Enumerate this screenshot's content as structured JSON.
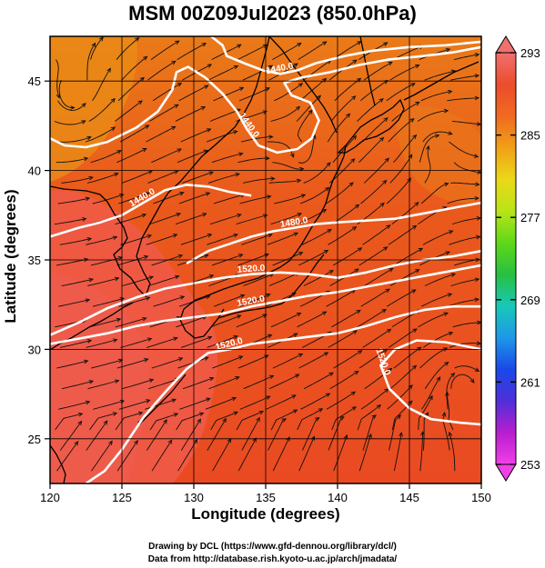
{
  "title": "MSM 00Z09Jul2023 (850.0hPa)",
  "xlabel": "Longitude (degrees)",
  "ylabel": "Latitude  (degrees)",
  "credits": [
    "Drawing by DCL (https://www.gfd-dennou.org/library/dcl/)",
    "Data from http://database.rish.kyoto-u.ac.jp/arch/jmadata/"
  ],
  "colors": {
    "warm_fill": "#ea4a1f",
    "hot_fill": "#ef5b4a",
    "mild_fill": "#ea7a18",
    "contour": "#ffffff",
    "coast": "#000000",
    "grid": "#000000"
  },
  "chart_data": {
    "type": "heatmap",
    "map_type": "weather map with filled temperature, streamlines and height contours",
    "xlim": [
      120,
      150
    ],
    "ylim": [
      22.5,
      47.5
    ],
    "xticks": [
      120,
      125,
      130,
      135,
      140,
      145,
      150
    ],
    "yticks": [
      25,
      30,
      35,
      40,
      45
    ],
    "grid": true,
    "colorbar": {
      "ticks": [
        253,
        261,
        269,
        277,
        285,
        293
      ],
      "range": [
        253,
        293
      ],
      "colors_low_to_high": [
        "#f040e8",
        "#b81ed0",
        "#4f2fd8",
        "#1a48e8",
        "#1e98e8",
        "#18c8b8",
        "#28c040",
        "#5ed818",
        "#b8e418",
        "#ecd818",
        "#f0a018",
        "#f06a20",
        "#ec4c2c",
        "#f07070"
      ]
    },
    "contours": [
      {
        "label": "1440.0",
        "points": [
          [
            120,
            41.8
          ],
          [
            121,
            41.4
          ],
          [
            122.5,
            41.3
          ],
          [
            124,
            41.6
          ],
          [
            126,
            42.4
          ],
          [
            127.5,
            43.3
          ],
          [
            128.5,
            44.5
          ],
          [
            128.8,
            45.5
          ],
          [
            129.6,
            45.8
          ],
          [
            130.8,
            45.2
          ],
          [
            132,
            44.3
          ],
          [
            133,
            43.3
          ],
          [
            133.7,
            42.3
          ],
          [
            134.5,
            41.4
          ],
          [
            135.8,
            41.0
          ],
          [
            137.2,
            41.2
          ],
          [
            138.2,
            41.8
          ],
          [
            138.7,
            42.8
          ],
          [
            138.1,
            43.8
          ],
          [
            136.8,
            44.2
          ],
          [
            136.3,
            44.9
          ],
          [
            137.5,
            45.2
          ],
          [
            139.5,
            45.5
          ],
          [
            141.5,
            45.9
          ],
          [
            143.5,
            46.2
          ],
          [
            146,
            46.4
          ],
          [
            148,
            46.6
          ],
          [
            150,
            46.9
          ]
        ]
      },
      {
        "label": "1440.0",
        "points": [
          [
            131.2,
            47.5
          ],
          [
            132,
            47.0
          ],
          [
            132.3,
            46.4
          ],
          [
            133.5,
            46.0
          ],
          [
            134.8,
            45.6
          ],
          [
            136,
            45.4
          ],
          [
            137.2,
            45.6
          ],
          [
            138.5,
            46.0
          ],
          [
            140.5,
            46.4
          ],
          [
            142.5,
            46.7
          ],
          [
            145,
            46.9
          ],
          [
            147.5,
            47.0
          ],
          [
            150,
            47.2
          ]
        ]
      },
      {
        "label": "1440.0",
        "points": [
          [
            120,
            36.3
          ],
          [
            122,
            36.8
          ],
          [
            123.5,
            37.1
          ],
          [
            125,
            37.5
          ],
          [
            126.5,
            38.2
          ],
          [
            128,
            38.9
          ],
          [
            129.5,
            39.2
          ],
          [
            131,
            39.1
          ],
          [
            132.5,
            38.8
          ],
          [
            134,
            38.6
          ]
        ]
      },
      {
        "label": "1480.0",
        "points": [
          [
            129.5,
            34.8
          ],
          [
            131,
            35.5
          ],
          [
            132.5,
            35.9
          ],
          [
            134,
            36.3
          ],
          [
            135.5,
            36.6
          ],
          [
            137,
            36.8
          ],
          [
            138.5,
            37.0
          ],
          [
            140,
            37.1
          ],
          [
            142,
            37.2
          ],
          [
            144,
            37.3
          ],
          [
            146,
            37.6
          ],
          [
            148,
            37.9
          ],
          [
            150,
            38.2
          ]
        ]
      },
      {
        "label": "1520.0",
        "points": [
          [
            120,
            30.8
          ],
          [
            122,
            31.5
          ],
          [
            124,
            32.3
          ],
          [
            126,
            32.9
          ],
          [
            128,
            33.4
          ],
          [
            130,
            33.7
          ],
          [
            132,
            34.0
          ],
          [
            134,
            34.2
          ],
          [
            136,
            34.3
          ],
          [
            138,
            34.2
          ],
          [
            140,
            34.0
          ],
          [
            142,
            34.3
          ],
          [
            144,
            34.7
          ],
          [
            146,
            35.0
          ],
          [
            148,
            35.2
          ],
          [
            150,
            35.5
          ]
        ]
      },
      {
        "label": "1520.0",
        "points": [
          [
            120,
            30.3
          ],
          [
            122,
            30.6
          ],
          [
            124,
            30.9
          ],
          [
            126,
            31.3
          ],
          [
            128,
            31.6
          ],
          [
            130,
            31.8
          ],
          [
            132,
            32.0
          ],
          [
            134,
            32.4
          ],
          [
            136,
            32.7
          ],
          [
            138,
            33.0
          ],
          [
            140,
            33.2
          ],
          [
            142,
            33.5
          ],
          [
            144,
            33.8
          ],
          [
            146,
            34.1
          ],
          [
            148,
            34.4
          ],
          [
            150,
            34.7
          ]
        ]
      },
      {
        "label": "1520.0",
        "points": [
          [
            122.5,
            22.5
          ],
          [
            123.8,
            23.2
          ],
          [
            125,
            24.4
          ],
          [
            126.5,
            26.2
          ],
          [
            128,
            27.6
          ],
          [
            129.5,
            28.9
          ],
          [
            131,
            29.8
          ],
          [
            132.5,
            30.0
          ],
          [
            134,
            30.3
          ],
          [
            136,
            30.5
          ],
          [
            138,
            30.7
          ],
          [
            140,
            30.9
          ],
          [
            142,
            31.3
          ],
          [
            144,
            31.8
          ],
          [
            146,
            32.2
          ],
          [
            148,
            32.4
          ],
          [
            150,
            32.4
          ]
        ]
      },
      {
        "label": "1520.0",
        "points": [
          [
            150,
            30.0
          ],
          [
            147.5,
            30.4
          ],
          [
            145.5,
            30.5
          ],
          [
            144,
            30.0
          ],
          [
            143,
            29.1
          ],
          [
            143.6,
            27.8
          ],
          [
            145,
            26.7
          ],
          [
            146.5,
            26.1
          ],
          [
            148.5,
            25.9
          ],
          [
            150,
            25.8
          ]
        ]
      }
    ]
  }
}
